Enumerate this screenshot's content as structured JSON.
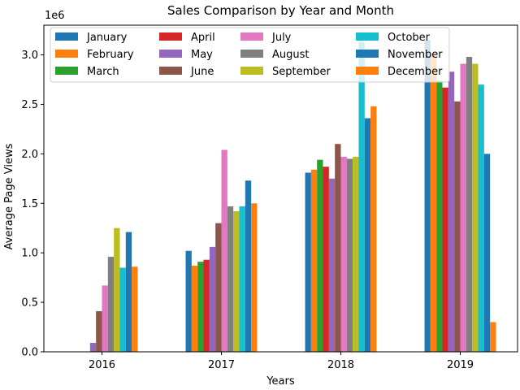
{
  "chart_data": {
    "type": "bar",
    "title": "Sales Comparison by Year and Month",
    "xlabel": "Years",
    "ylabel": "Average Page Views",
    "y_offset_text": "1e6",
    "categories": [
      "2016",
      "2017",
      "2018",
      "2019"
    ],
    "ylim": [
      0,
      3300000
    ],
    "yticks": [
      0,
      500000,
      1000000,
      1500000,
      2000000,
      2500000,
      3000000
    ],
    "ytick_labels": [
      "0.0",
      "0.5",
      "1.0",
      "1.5",
      "2.0",
      "2.5",
      "3.0"
    ],
    "legend_position": "top-left",
    "legend_columns": 4,
    "series": [
      {
        "name": "January",
        "color": "#1f77b4",
        "values": [
          0,
          1020000,
          1810000,
          3150000
        ]
      },
      {
        "name": "February",
        "color": "#ff7f0e",
        "values": [
          0,
          870000,
          1840000,
          3000000
        ]
      },
      {
        "name": "March",
        "color": "#2ca02c",
        "values": [
          0,
          910000,
          1940000,
          2740000
        ]
      },
      {
        "name": "April",
        "color": "#d62728",
        "values": [
          0,
          930000,
          1870000,
          2670000
        ]
      },
      {
        "name": "May",
        "color": "#9467bd",
        "values": [
          90000,
          1060000,
          1750000,
          2830000
        ]
      },
      {
        "name": "June",
        "color": "#8c564b",
        "values": [
          410000,
          1300000,
          2100000,
          2530000
        ]
      },
      {
        "name": "July",
        "color": "#e377c2",
        "values": [
          670000,
          2040000,
          1970000,
          2910000
        ]
      },
      {
        "name": "August",
        "color": "#7f7f7f",
        "values": [
          960000,
          1470000,
          1950000,
          2980000
        ]
      },
      {
        "name": "September",
        "color": "#bcbd22",
        "values": [
          1250000,
          1420000,
          1970000,
          2910000
        ]
      },
      {
        "name": "October",
        "color": "#17becf",
        "values": [
          850000,
          1470000,
          3130000,
          2700000
        ]
      },
      {
        "name": "November",
        "color": "#1f77b4",
        "values": [
          1210000,
          1730000,
          2360000,
          2000000
        ]
      },
      {
        "name": "December",
        "color": "#ff7f0e",
        "values": [
          860000,
          1500000,
          2480000,
          300000
        ]
      }
    ]
  }
}
